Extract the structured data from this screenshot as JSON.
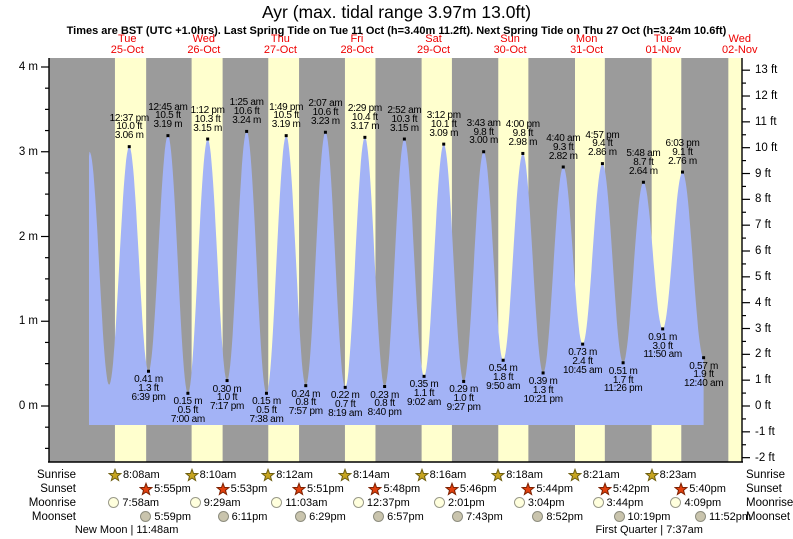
{
  "title": "Ayr (max. tidal range 3.97m 13.0ft)",
  "subtitle": "Times are BST (UTC +1.0hrs). Last Spring Tide on Tue 11 Oct (h=3.40m 11.2ft). Next Spring Tide on Thu 27 Oct (h=3.24m 10.6ft)",
  "days": [
    {
      "dow": "Tue",
      "date": "25-Oct"
    },
    {
      "dow": "Wed",
      "date": "26-Oct"
    },
    {
      "dow": "Thu",
      "date": "27-Oct"
    },
    {
      "dow": "Fri",
      "date": "28-Oct"
    },
    {
      "dow": "Sat",
      "date": "29-Oct"
    },
    {
      "dow": "Sun",
      "date": "30-Oct"
    },
    {
      "dow": "Mon",
      "date": "31-Oct"
    },
    {
      "dow": "Tue",
      "date": "01-Nov"
    },
    {
      "dow": "Wed",
      "date": "02-Nov"
    }
  ],
  "chart_data": {
    "type": "area",
    "title": "Ayr tide heights",
    "x_start": "Tue 25-Oct 00:00",
    "x_units": "hours from Tue 25-Oct 00:00 (BST)",
    "ylim_m": [
      -0.66,
      4.1
    ],
    "yticks_m": [
      "0 m",
      "1 m",
      "2 m",
      "3 m",
      "4 m"
    ],
    "yticks_ft": [
      "-2 ft",
      "-1 ft",
      "0 ft",
      "1 ft",
      "2 ft",
      "3 ft",
      "4 ft",
      "5 ft",
      "6 ft",
      "7 ft",
      "8 ft",
      "9 ft",
      "10 ft",
      "11 ft",
      "12 ft",
      "13 ft"
    ],
    "start": {
      "t": 0,
      "h": 2.95
    },
    "last_day_sunrise_t": 200.42,
    "extremes": [
      {
        "t": 0.17,
        "h": 3.0,
        "type": "H"
      },
      {
        "t": 6.3,
        "h": 0.25,
        "type": "L"
      },
      {
        "t": 12.617,
        "h": 3.06,
        "type": "H",
        "time": "12:37 pm",
        "ft": "10.0 ft",
        "m": "3.06 m"
      },
      {
        "t": 18.65,
        "h": 0.41,
        "type": "L",
        "time": "6:39 pm",
        "ft": "1.3 ft",
        "m": "0.41 m"
      },
      {
        "t": 24.75,
        "h": 3.19,
        "type": "H",
        "time": "12:45 am",
        "ft": "10.5 ft",
        "m": "3.19 m"
      },
      {
        "t": 31.0,
        "h": 0.15,
        "type": "L",
        "time": "7:00 am",
        "ft": "0.5 ft",
        "m": "0.15 m"
      },
      {
        "t": 37.2,
        "h": 3.15,
        "type": "H",
        "time": "1:12 pm",
        "ft": "10.3 ft",
        "m": "3.15 m"
      },
      {
        "t": 43.283,
        "h": 0.3,
        "type": "L",
        "time": "7:17 pm",
        "ft": "1.0 ft",
        "m": "0.30 m"
      },
      {
        "t": 49.417,
        "h": 3.24,
        "type": "H",
        "time": "1:25 am",
        "ft": "10.6 ft",
        "m": "3.24 m"
      },
      {
        "t": 55.633,
        "h": 0.15,
        "type": "L",
        "time": "7:38 am",
        "ft": "0.5 ft",
        "m": "0.15 m"
      },
      {
        "t": 61.817,
        "h": 3.19,
        "type": "H",
        "time": "1:49 pm",
        "ft": "10.5 ft",
        "m": "3.19 m"
      },
      {
        "t": 67.95,
        "h": 0.24,
        "type": "L",
        "time": "7:57 pm",
        "ft": "0.8 ft",
        "m": "0.24 m"
      },
      {
        "t": 74.117,
        "h": 3.23,
        "type": "H",
        "time": "2:07 am",
        "ft": "10.6 ft",
        "m": "3.23 m"
      },
      {
        "t": 80.317,
        "h": 0.22,
        "type": "L",
        "time": "8:19 am",
        "ft": "0.7 ft",
        "m": "0.22 m"
      },
      {
        "t": 86.483,
        "h": 3.17,
        "type": "H",
        "time": "2:29 pm",
        "ft": "10.4 ft",
        "m": "3.17 m"
      },
      {
        "t": 92.667,
        "h": 0.23,
        "type": "L",
        "time": "8:40 pm",
        "ft": "0.8 ft",
        "m": "0.23 m"
      },
      {
        "t": 98.867,
        "h": 3.15,
        "type": "H",
        "time": "2:52 am",
        "ft": "10.3 ft",
        "m": "3.15 m"
      },
      {
        "t": 105.033,
        "h": 0.35,
        "type": "L",
        "time": "9:02 am",
        "ft": "1.1 ft",
        "m": "0.35 m"
      },
      {
        "t": 111.2,
        "h": 3.09,
        "type": "H",
        "time": "3:12 pm",
        "ft": "10.1 ft",
        "m": "3.09 m"
      },
      {
        "t": 117.45,
        "h": 0.29,
        "type": "L",
        "time": "9:27 pm",
        "ft": "1.0 ft",
        "m": "0.29 m"
      },
      {
        "t": 123.717,
        "h": 3.0,
        "type": "H",
        "time": "3:43 am",
        "ft": "9.8 ft",
        "m": "3.00 m"
      },
      {
        "t": 129.833,
        "h": 0.54,
        "type": "L",
        "time": "9:50 am",
        "ft": "1.8 ft",
        "m": "0.54 m"
      },
      {
        "t": 136.0,
        "h": 2.98,
        "type": "H",
        "time": "4:00 pm",
        "ft": "9.8 ft",
        "m": "2.98 m"
      },
      {
        "t": 142.35,
        "h": 0.39,
        "type": "L",
        "time": "10:21 pm",
        "ft": "1.3 ft",
        "m": "0.39 m"
      },
      {
        "t": 148.667,
        "h": 2.82,
        "type": "H",
        "time": "4:40 am",
        "ft": "9.3 ft",
        "m": "2.82 m"
      },
      {
        "t": 154.75,
        "h": 0.73,
        "type": "L",
        "time": "10:45 am",
        "ft": "2.4 ft",
        "m": "0.73 m"
      },
      {
        "t": 160.95,
        "h": 2.86,
        "type": "H",
        "time": "4:57 pm",
        "ft": "9.4 ft",
        "m": "2.86 m"
      },
      {
        "t": 167.433,
        "h": 0.51,
        "type": "L",
        "time": "11:26 pm",
        "ft": "1.7 ft",
        "m": "0.51 m"
      },
      {
        "t": 173.8,
        "h": 2.64,
        "type": "H",
        "time": "5:48 am",
        "ft": "8.7 ft",
        "m": "2.64 m"
      },
      {
        "t": 179.833,
        "h": 0.91,
        "type": "L",
        "time": "11:50 am",
        "ft": "3.0 ft",
        "m": "0.91 m"
      },
      {
        "t": 186.05,
        "h": 2.76,
        "type": "H",
        "time": "6:03 pm",
        "ft": "9.1 ft",
        "m": "2.76 m"
      },
      {
        "t": 192.667,
        "h": 0.57,
        "type": "L",
        "time": "12:40 am",
        "ft": "1.9 ft",
        "m": "0.57 m"
      }
    ]
  },
  "astro": {
    "row_labels": [
      "Sunrise",
      "Sunset",
      "Moonrise",
      "Moonset"
    ],
    "sunrise": [
      {
        "time": "8:08am",
        "t": 8.133
      },
      {
        "time": "8:10am",
        "t": 32.167
      },
      {
        "time": "8:12am",
        "t": 56.2
      },
      {
        "time": "8:14am",
        "t": 80.233
      },
      {
        "time": "8:16am",
        "t": 104.267
      },
      {
        "time": "8:18am",
        "t": 128.3
      },
      {
        "time": "8:21am",
        "t": 152.35
      },
      {
        "time": "8:23am",
        "t": 176.383
      }
    ],
    "sunset": [
      {
        "time": "5:55pm",
        "t": 17.917
      },
      {
        "time": "5:53pm",
        "t": 41.883
      },
      {
        "time": "5:51pm",
        "t": 65.85
      },
      {
        "time": "5:48pm",
        "t": 89.8
      },
      {
        "time": "5:46pm",
        "t": 113.767
      },
      {
        "time": "5:44pm",
        "t": 137.733
      },
      {
        "time": "5:42pm",
        "t": 161.7
      },
      {
        "time": "5:40pm",
        "t": 185.667
      }
    ],
    "moonrise": [
      {
        "time": "7:58am",
        "t": 7.967
      },
      {
        "time": "9:29am",
        "t": 33.483
      },
      {
        "time": "11:03am",
        "t": 59.05
      },
      {
        "time": "12:37pm",
        "t": 84.617
      },
      {
        "time": "2:01pm",
        "t": 110.017
      },
      {
        "time": "3:04pm",
        "t": 135.067
      },
      {
        "time": "3:44pm",
        "t": 159.733
      },
      {
        "time": "4:09pm",
        "t": 184.15
      }
    ],
    "moonset": [
      {
        "time": "5:59pm",
        "t": 17.983
      },
      {
        "time": "6:11pm",
        "t": 42.183
      },
      {
        "time": "6:29pm",
        "t": 66.483
      },
      {
        "time": "6:57pm",
        "t": 90.95
      },
      {
        "time": "7:43pm",
        "t": 115.717
      },
      {
        "time": "8:52pm",
        "t": 140.867
      },
      {
        "time": "10:19pm",
        "t": 166.317
      },
      {
        "time": "11:52pm",
        "t": 191.867
      }
    ],
    "phases": [
      {
        "text": "New Moon | 11:48am",
        "t": 11.8
      },
      {
        "text": "First Quarter | 7:37am",
        "t": 175.617
      }
    ]
  },
  "colors": {
    "night_bg": "#9b9b9b",
    "daylight_band": "#ffffce",
    "tide_fill": "#a3b3f6",
    "day_label_red": "#ee0000",
    "sunrise_star_fill": "#c7a41f",
    "sunrise_star_stroke": "#6e5e10",
    "sunset_star_fill": "#e2400e",
    "sunset_star_stroke": "#7c2000",
    "moonrise_fill": "#ffffdd",
    "moonrise_stroke": "#9a9a8a",
    "moonset_fill": "#c9c4ad",
    "moonset_stroke": "#8d8d7f",
    "axis": "#000000"
  }
}
